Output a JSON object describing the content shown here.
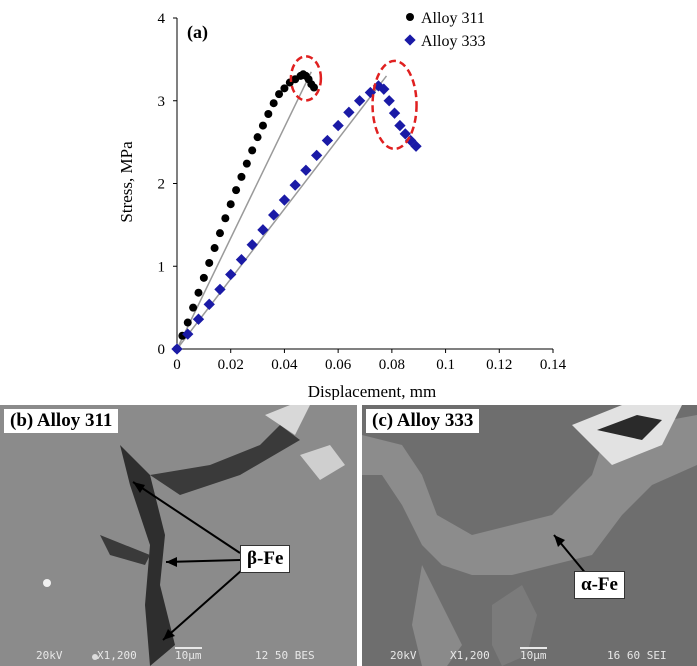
{
  "chart_data": {
    "type": "scatter",
    "panel_label": "(a)",
    "xlabel": "Displacement, mm",
    "ylabel": "Stress, MPa",
    "xlim": [
      0,
      0.14
    ],
    "ylim": [
      0,
      4
    ],
    "x_ticks": [
      "0",
      "0.02",
      "0.04",
      "0.06",
      "0.08",
      "0.1",
      "0.12",
      "0.14"
    ],
    "y_ticks": [
      "0",
      "1",
      "2",
      "3",
      "4"
    ],
    "grid": false,
    "legend_position": "top-right",
    "series": [
      {
        "name": "Alloy 311",
        "marker": "circle",
        "color": "#000000",
        "x": [
          0.0,
          0.002,
          0.004,
          0.006,
          0.008,
          0.01,
          0.012,
          0.014,
          0.016,
          0.018,
          0.02,
          0.022,
          0.024,
          0.026,
          0.028,
          0.03,
          0.032,
          0.034,
          0.036,
          0.038,
          0.04,
          0.042,
          0.044,
          0.046,
          0.047,
          0.048,
          0.049,
          0.05,
          0.051
        ],
        "y": [
          0.0,
          0.16,
          0.32,
          0.5,
          0.68,
          0.86,
          1.04,
          1.22,
          1.4,
          1.58,
          1.75,
          1.92,
          2.08,
          2.24,
          2.4,
          2.56,
          2.7,
          2.84,
          2.97,
          3.08,
          3.15,
          3.22,
          3.26,
          3.3,
          3.32,
          3.3,
          3.26,
          3.2,
          3.16
        ]
      },
      {
        "name": "Alloy 333",
        "marker": "diamond",
        "color": "#1a1aa6",
        "x": [
          0.0,
          0.004,
          0.008,
          0.012,
          0.016,
          0.02,
          0.024,
          0.028,
          0.032,
          0.036,
          0.04,
          0.044,
          0.048,
          0.052,
          0.056,
          0.06,
          0.064,
          0.068,
          0.072,
          0.075,
          0.077,
          0.079,
          0.081,
          0.083,
          0.085,
          0.087,
          0.089
        ],
        "y": [
          0.0,
          0.18,
          0.36,
          0.54,
          0.72,
          0.9,
          1.08,
          1.26,
          1.44,
          1.62,
          1.8,
          1.98,
          2.16,
          2.34,
          2.52,
          2.7,
          2.86,
          3.0,
          3.1,
          3.18,
          3.14,
          3.0,
          2.85,
          2.7,
          2.6,
          2.52,
          2.45
        ]
      }
    ],
    "trendlines": [
      {
        "series": "Alloy 311",
        "x": [
          0.0,
          0.05
        ],
        "y": [
          0.0,
          3.35
        ]
      },
      {
        "series": "Alloy 333",
        "x": [
          0.0,
          0.078
        ],
        "y": [
          0.0,
          3.3
        ]
      }
    ],
    "highlighted_regions": [
      {
        "series": "Alloy 311",
        "center": [
          0.048,
          3.27
        ],
        "color": "#e02020"
      },
      {
        "series": "Alloy 333",
        "center": [
          0.081,
          2.95
        ],
        "color": "#e02020"
      }
    ]
  },
  "micrographs": [
    {
      "panel_label": "(b) Alloy 311",
      "phase_label": "β-Fe",
      "sem_info": {
        "voltage": "20kV",
        "magnification": "X1,200",
        "scale": "10μm",
        "code": "12 50 BES"
      }
    },
    {
      "panel_label": "(c) Alloy 333",
      "phase_label": "α-Fe",
      "sem_info": {
        "voltage": "20kV",
        "magnification": "X1,200",
        "scale": "10μm",
        "code": "16 60 SEI"
      }
    }
  ],
  "colors": {
    "sem_background_b": "#8a8a8a",
    "sem_background_c": "#6e6e6e",
    "highlight": "#e02020"
  }
}
